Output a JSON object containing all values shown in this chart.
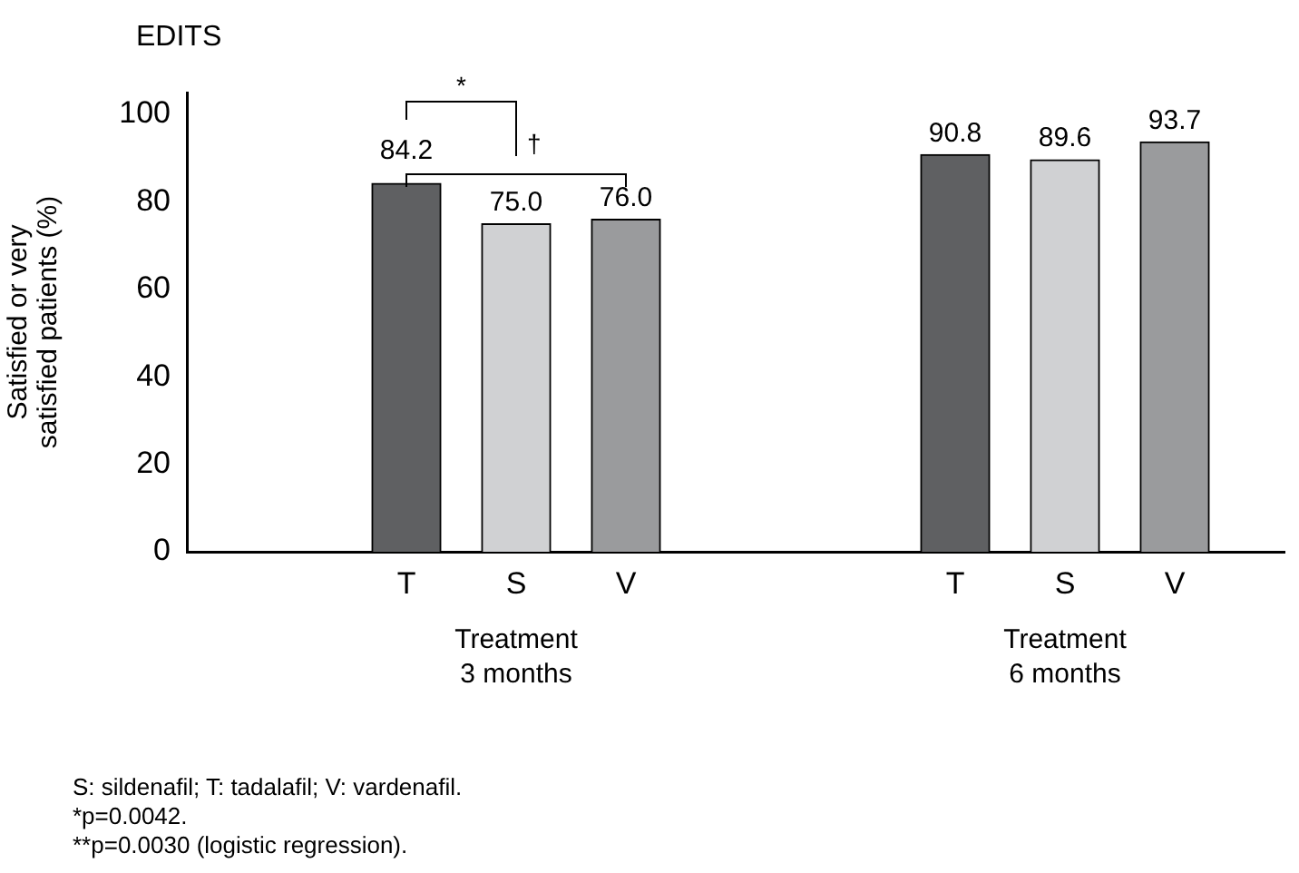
{
  "chart_data": {
    "type": "bar",
    "title": "EDITS",
    "ylabel": "Satisfied or very\nsatisfied patients (%)",
    "categories": [
      null,
      null,
      "T",
      "S",
      "V",
      null,
      null,
      "T",
      "S",
      "V",
      null
    ],
    "values": [
      null,
      null,
      84.2,
      75.0,
      76.0,
      null,
      null,
      90.8,
      89.6,
      93.7,
      null
    ],
    "colors": [
      "#5f6062",
      "#5f6062",
      "#5f6062",
      "#d0d1d3",
      "#9a9b9d",
      "#5f6062",
      "#5f6062",
      "#5f6062",
      "#d0d1d3",
      "#9a9b9d",
      "#5f6062"
    ],
    "value_labels": [
      null,
      null,
      "84.2",
      "75.0",
      "76.0",
      null,
      null,
      "90.8",
      "89.6",
      "93.7",
      null
    ],
    "ylim": [
      0,
      105
    ],
    "yticks": [
      0,
      20,
      40,
      60,
      80,
      100
    ],
    "grid": false,
    "legend": false,
    "annotations": [
      "*",
      "†",
      "Treatment\n3 months",
      "Treatment\n6 months",
      "S: sildenafil; T: tadalafil; V: vardenafil.",
      "*p=0.0042.",
      "**p=0.0030 (logistic regression)."
    ]
  }
}
